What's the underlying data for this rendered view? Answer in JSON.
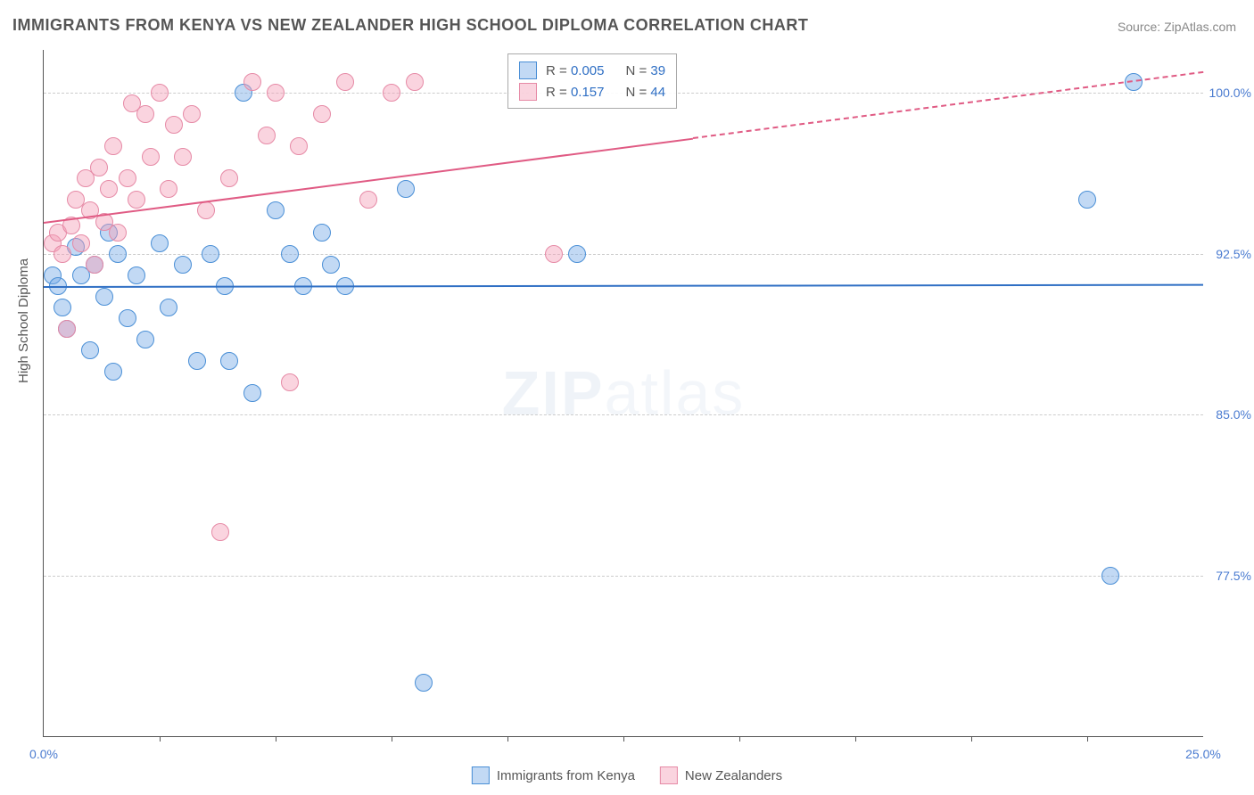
{
  "title": "IMMIGRANTS FROM KENYA VS NEW ZEALANDER HIGH SCHOOL DIPLOMA CORRELATION CHART",
  "source": "Source: ZipAtlas.com",
  "ylabel": "High School Diploma",
  "watermark_a": "ZIP",
  "watermark_b": "atlas",
  "chart": {
    "type": "scatter",
    "background_color": "#ffffff",
    "grid_color": "#cccccc",
    "axis_color": "#555555",
    "xlim": [
      0,
      25
    ],
    "ylim": [
      70,
      102
    ],
    "yticks": [
      {
        "v": 100.0,
        "label": "100.0%",
        "color": "#4a7bd0"
      },
      {
        "v": 92.5,
        "label": "92.5%",
        "color": "#4a7bd0"
      },
      {
        "v": 85.0,
        "label": "85.0%",
        "color": "#4a7bd0"
      },
      {
        "v": 77.5,
        "label": "77.5%",
        "color": "#4a7bd0"
      }
    ],
    "xticks_minor": [
      2.5,
      5,
      7.5,
      10,
      12.5,
      15,
      17.5,
      20,
      22.5
    ],
    "xticks_labels": [
      {
        "v": 0,
        "label": "0.0%",
        "color": "#4a7bd0"
      },
      {
        "v": 25,
        "label": "25.0%",
        "color": "#4a7bd0"
      }
    ],
    "series": [
      {
        "name": "Immigrants from Kenya",
        "fill": "rgba(120,170,230,0.45)",
        "stroke": "#4a8fd6",
        "marker_r": 9,
        "r_value": "0.005",
        "n_value": "39",
        "trend": {
          "x1": 0,
          "y1": 91.0,
          "x2": 25,
          "y2": 91.1,
          "color": "#2f6fc4",
          "dash": false
        },
        "points": [
          [
            0.2,
            91.5
          ],
          [
            0.3,
            91.0
          ],
          [
            0.4,
            90.0
          ],
          [
            0.5,
            89.0
          ],
          [
            0.7,
            92.8
          ],
          [
            0.8,
            91.5
          ],
          [
            1.0,
            88.0
          ],
          [
            1.1,
            92.0
          ],
          [
            1.3,
            90.5
          ],
          [
            1.4,
            93.5
          ],
          [
            1.5,
            87.0
          ],
          [
            1.6,
            92.5
          ],
          [
            1.8,
            89.5
          ],
          [
            2.0,
            91.5
          ],
          [
            2.2,
            88.5
          ],
          [
            2.5,
            93.0
          ],
          [
            2.7,
            90.0
          ],
          [
            3.0,
            92.0
          ],
          [
            3.3,
            87.5
          ],
          [
            3.6,
            92.5
          ],
          [
            3.9,
            91.0
          ],
          [
            4.0,
            87.5
          ],
          [
            4.3,
            100.0
          ],
          [
            4.5,
            86.0
          ],
          [
            5.0,
            94.5
          ],
          [
            5.3,
            92.5
          ],
          [
            5.6,
            91.0
          ],
          [
            6.0,
            93.5
          ],
          [
            6.2,
            92.0
          ],
          [
            6.5,
            91.0
          ],
          [
            7.8,
            95.5
          ],
          [
            8.2,
            72.5
          ],
          [
            11.5,
            92.5
          ],
          [
            22.5,
            95.0
          ],
          [
            23.0,
            77.5
          ],
          [
            23.5,
            100.5
          ]
        ]
      },
      {
        "name": "New Zealanders",
        "fill": "rgba(245,160,185,0.45)",
        "stroke": "#e68aa6",
        "marker_r": 9,
        "r_value": "0.157",
        "n_value": "44",
        "trend": {
          "x1": 0,
          "y1": 94.0,
          "x2": 25,
          "y2": 101.0,
          "color": "#e05b84",
          "dash_after_x": 14
        },
        "points": [
          [
            0.2,
            93.0
          ],
          [
            0.3,
            93.5
          ],
          [
            0.4,
            92.5
          ],
          [
            0.5,
            89.0
          ],
          [
            0.6,
            93.8
          ],
          [
            0.7,
            95.0
          ],
          [
            0.8,
            93.0
          ],
          [
            0.9,
            96.0
          ],
          [
            1.0,
            94.5
          ],
          [
            1.1,
            92.0
          ],
          [
            1.2,
            96.5
          ],
          [
            1.3,
            94.0
          ],
          [
            1.4,
            95.5
          ],
          [
            1.5,
            97.5
          ],
          [
            1.6,
            93.5
          ],
          [
            1.8,
            96.0
          ],
          [
            1.9,
            99.5
          ],
          [
            2.0,
            95.0
          ],
          [
            2.2,
            99.0
          ],
          [
            2.3,
            97.0
          ],
          [
            2.5,
            100.0
          ],
          [
            2.7,
            95.5
          ],
          [
            2.8,
            98.5
          ],
          [
            3.0,
            97.0
          ],
          [
            3.2,
            99.0
          ],
          [
            3.5,
            94.5
          ],
          [
            3.8,
            79.5
          ],
          [
            4.0,
            96.0
          ],
          [
            4.5,
            100.5
          ],
          [
            4.8,
            98.0
          ],
          [
            5.0,
            100.0
          ],
          [
            5.3,
            86.5
          ],
          [
            5.5,
            97.5
          ],
          [
            6.0,
            99.0
          ],
          [
            6.5,
            100.5
          ],
          [
            7.0,
            95.0
          ],
          [
            7.5,
            100.0
          ],
          [
            8.0,
            100.5
          ],
          [
            11.0,
            92.5
          ]
        ]
      }
    ]
  },
  "legend_bottom": [
    {
      "label": "Immigrants from Kenya",
      "fill": "rgba(120,170,230,0.45)",
      "stroke": "#4a8fd6"
    },
    {
      "label": "New Zealanders",
      "fill": "rgba(245,160,185,0.45)",
      "stroke": "#e68aa6"
    }
  ],
  "legend_top": {
    "label_r": "R =",
    "label_n": "N =",
    "value_color": "#2f6fc4"
  }
}
